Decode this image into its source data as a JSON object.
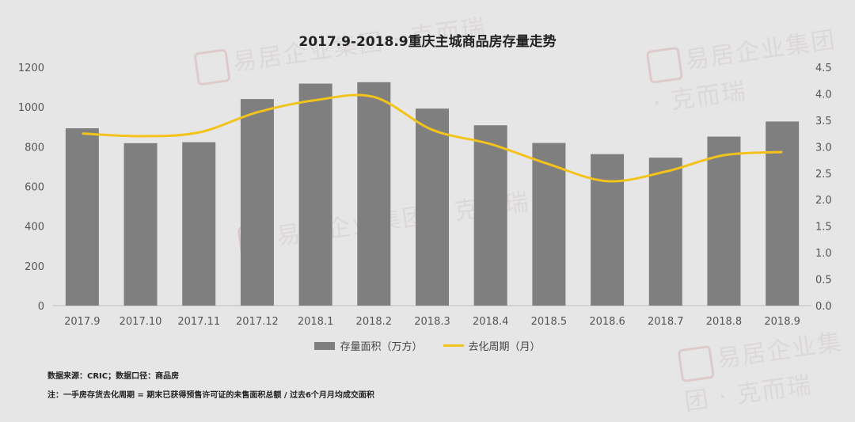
{
  "watermark_text": "易居企业集团 · 克而瑞",
  "chart_data": {
    "type": "bar",
    "title": "2017.9-2018.9重庆主城商品房存量走势",
    "categories": [
      "2017.9",
      "2017.10",
      "2017.11",
      "2017.12",
      "2018.1",
      "2018.2",
      "2018.3",
      "2018.4",
      "2018.5",
      "2018.6",
      "2018.7",
      "2018.8",
      "2018.9"
    ],
    "series": [
      {
        "name": "存量面积（万方）",
        "kind": "bar",
        "axis": "left",
        "color": "#7f7f7f",
        "values": [
          893,
          818,
          823,
          1040,
          1118,
          1125,
          992,
          908,
          819,
          763,
          745,
          851,
          927
        ]
      },
      {
        "name": "去化周期（月）",
        "kind": "line",
        "axis": "right",
        "color": "#f2c31b",
        "values": [
          3.25,
          3.2,
          3.27,
          3.65,
          3.88,
          3.94,
          3.32,
          3.05,
          2.67,
          2.35,
          2.53,
          2.84,
          2.9
        ]
      }
    ],
    "y_left": {
      "min": 0,
      "max": 1200,
      "ticks": [
        0,
        200,
        400,
        600,
        800,
        1000,
        1200
      ]
    },
    "y_right": {
      "min": 0,
      "max": 4.5,
      "ticks": [
        "0.0",
        "0.5",
        "1.0",
        "1.5",
        "2.0",
        "2.5",
        "3.0",
        "3.5",
        "4.0",
        "4.5"
      ]
    },
    "grid": false,
    "legend_position": "bottom"
  },
  "footnotes": {
    "source": "数据来源：CRIC；数据口径：商品房",
    "note": "注：一手房存货去化周期 = 期末已获得预售许可证的未售面积总额 / 过去6个月月均成交面积"
  }
}
